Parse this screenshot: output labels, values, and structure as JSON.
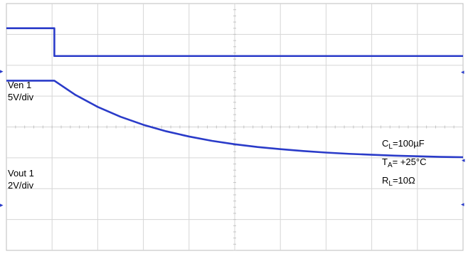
{
  "chart_data": {
    "type": "line",
    "title": "",
    "xlabel": "",
    "ylabel": "",
    "grid": true,
    "grid_divisions": {
      "x": 10,
      "y": 8
    },
    "xlim": [
      0,
      10
    ],
    "ylim": [
      -4,
      4
    ],
    "series": [
      {
        "name": "Ven 1",
        "x": [
          0,
          1.05,
          1.05,
          10
        ],
        "y": [
          3.2,
          3.2,
          2.3,
          2.3
        ]
      },
      {
        "name": "Vout 1",
        "x": [
          0,
          1.05,
          1.5,
          2,
          2.5,
          3,
          3.5,
          4,
          4.5,
          5,
          5.5,
          6,
          6.5,
          7,
          7.5,
          8,
          8.5,
          9,
          9.5,
          10
        ],
        "y": [
          1.5,
          1.5,
          1.05,
          0.65,
          0.33,
          0.07,
          -0.14,
          -0.31,
          -0.45,
          -0.56,
          -0.65,
          -0.72,
          -0.78,
          -0.83,
          -0.87,
          -0.9,
          -0.93,
          -0.95,
          -0.97,
          -0.98
        ]
      }
    ],
    "channel_labels": [
      {
        "name": "Ven 1",
        "scale": "5V/div"
      },
      {
        "name": "Vout 1",
        "scale": "2V/div"
      }
    ],
    "conditions": [
      {
        "sym": "C",
        "sub": "L",
        "rest": "=100µF"
      },
      {
        "sym": "T",
        "sub": "A",
        "rest": "= +25°C"
      },
      {
        "sym": "R",
        "sub": "L",
        "rest": "=10Ω"
      }
    ],
    "trace_color": "#2a3bc9",
    "grid_color": "#d6d6d6"
  }
}
